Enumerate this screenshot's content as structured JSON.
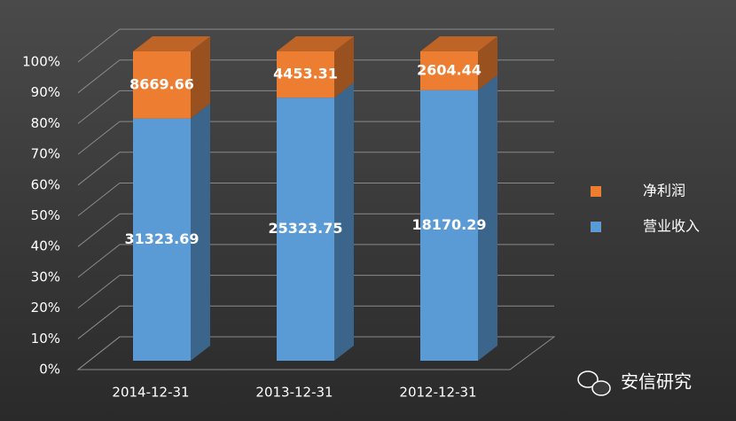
{
  "chart_data": {
    "type": "bar3d",
    "stacking": "percent",
    "categories": [
      "2014-12-31",
      "2013-12-31",
      "2012-12-31"
    ],
    "series": [
      {
        "name": "营业收入",
        "color": "#5b9bd5",
        "values": [
          31323.69,
          25323.75,
          18170.29
        ]
      },
      {
        "name": "净利润",
        "color": "#ed7d31",
        "values": [
          8669.66,
          4453.31,
          2604.44
        ]
      }
    ],
    "ylim": [
      0,
      100
    ],
    "yticks": [
      {
        "value": 0,
        "label": "0%"
      },
      {
        "value": 10,
        "label": "10%"
      },
      {
        "value": 20,
        "label": "20%"
      },
      {
        "value": 30,
        "label": "30%"
      },
      {
        "value": 40,
        "label": "40%"
      },
      {
        "value": 50,
        "label": "50%"
      },
      {
        "value": 60,
        "label": "60%"
      },
      {
        "value": 70,
        "label": "70%"
      },
      {
        "value": 80,
        "label": "80%"
      },
      {
        "value": 90,
        "label": "90%"
      },
      {
        "value": 100,
        "label": "100%"
      }
    ],
    "grid": true,
    "legend": "right",
    "watermark": "安信研究"
  }
}
